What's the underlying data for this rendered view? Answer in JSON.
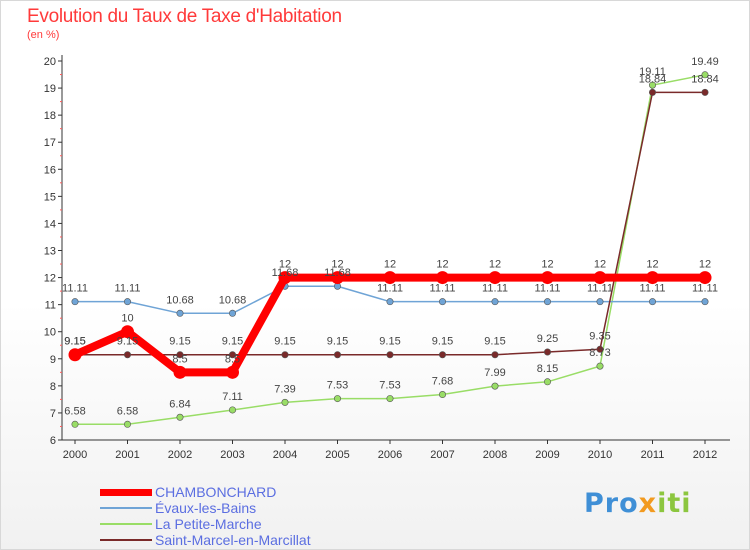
{
  "header": {
    "title": "Evolution du Taux de Taxe d'Habitation",
    "subtitle": "(en %)"
  },
  "brand": {
    "part1": "Pro",
    "part2": "x",
    "part3": "iti"
  },
  "colors": {
    "title": "#ff3a3a",
    "axis": "#333333",
    "grid": "#c8c8c8",
    "legend_text": "#5b6ee1"
  },
  "chart_data": {
    "type": "line",
    "title": "Evolution du Taux de Taxe d'Habitation",
    "ylabel": "(en %)",
    "xlabel": "",
    "x": [
      "2000",
      "2001",
      "2002",
      "2003",
      "2004",
      "2005",
      "2006",
      "2007",
      "2008",
      "2009",
      "2010",
      "2011",
      "2012"
    ],
    "ylim": [
      6,
      20
    ],
    "yticks": [
      "6",
      "7",
      "8",
      "9",
      "10",
      "11",
      "12",
      "13",
      "14",
      "15",
      "16",
      "17",
      "18",
      "19",
      "20"
    ],
    "grid": false,
    "legend_position": "bottom-left",
    "series": [
      {
        "name": "CHAMBONCHARD",
        "color": "#ff0000",
        "values": [
          9.15,
          10,
          8.5,
          8.5,
          12,
          12,
          12,
          12,
          12,
          12,
          12,
          12,
          12
        ],
        "labels": [
          "9.15",
          "10",
          "8.5",
          "8.5",
          "12",
          "12",
          "12",
          "12",
          "12",
          "12",
          "12",
          "12",
          "12"
        ]
      },
      {
        "name": "Évaux-les-Bains",
        "color": "#6fa4d6",
        "values": [
          11.11,
          11.11,
          10.68,
          10.68,
          11.68,
          11.68,
          11.11,
          11.11,
          11.11,
          11.11,
          11.11,
          11.11,
          11.11
        ],
        "labels": [
          "11.11",
          "11.11",
          "10.68",
          "10.68",
          "11.68",
          "11.68",
          "11.11",
          "11.11",
          "11.11",
          "11.11",
          "11.11",
          "11.11",
          "11.11"
        ]
      },
      {
        "name": "La Petite-Marche",
        "color": "#99dd66",
        "values": [
          6.58,
          6.58,
          6.84,
          7.11,
          7.39,
          7.53,
          7.53,
          7.68,
          7.99,
          8.15,
          8.73,
          19.11,
          19.49
        ],
        "labels": [
          "6.58",
          "6.58",
          "6.84",
          "7.11",
          "7.39",
          "7.53",
          "7.53",
          "7.68",
          "7.99",
          "8.15",
          "8.73",
          "19.11",
          "19.49"
        ]
      },
      {
        "name": "Saint-Marcel-en-Marcillat",
        "color": "#7a2a2a",
        "values": [
          9.15,
          9.15,
          9.15,
          9.15,
          9.15,
          9.15,
          9.15,
          9.15,
          9.15,
          9.25,
          9.35,
          18.84,
          18.84
        ],
        "labels": [
          "9.15",
          "9.15",
          "9.15",
          "9.15",
          "9.15",
          "9.15",
          "9.15",
          "9.15",
          "9.15",
          "9.25",
          "9.35",
          "18.84",
          "18.84"
        ]
      }
    ]
  }
}
